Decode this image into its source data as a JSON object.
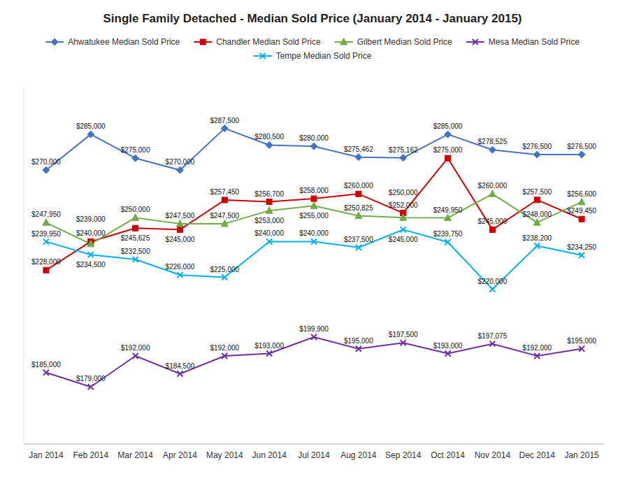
{
  "chart_data": {
    "type": "line",
    "title": "Single Family Detached - Median Sold Price (January 2014 - January 2015)",
    "categories": [
      "Jan 2014",
      "Feb 2014",
      "Mar 2014",
      "Apr 2014",
      "May 2014",
      "Jun 2014",
      "Jul 2014",
      "Aug 2014",
      "Sep 2014",
      "Oct 2014",
      "Nov 2014",
      "Dec 2014",
      "Jan 2015"
    ],
    "series": [
      {
        "name": "Ahwatukee Median Sold Price",
        "color": "#4472C4",
        "marker": "diamond",
        "values": [
          270000,
          285000,
          275000,
          270000,
          287500,
          280500,
          280000,
          275462,
          275162,
          285000,
          278525,
          276500,
          276500
        ],
        "value_labels": [
          "$270,000",
          "$285,000",
          "$275,000",
          "$270,000",
          "$287,500",
          "$280,500",
          "$280,000",
          "$275,462",
          "$275,162",
          "$285,000",
          "$278,525",
          "$276,500",
          "$276,500"
        ]
      },
      {
        "name": "Chandler Median Sold Price",
        "color": "#CC0000",
        "marker": "square",
        "values": [
          228000,
          240000,
          245625,
          245000,
          257450,
          256700,
          258000,
          260000,
          252000,
          275000,
          245000,
          257500,
          249450
        ],
        "value_labels": [
          "$228,000",
          "$240,000",
          "$245,625",
          "$245,000",
          "$257,450",
          "$256,700",
          "$258,000",
          "$260,000",
          "$252,000",
          "$275,000",
          "$245,000",
          "$257,500",
          "$249,450"
        ]
      },
      {
        "name": "Gilbert Median Sold Price",
        "color": "#70AD47",
        "marker": "triangle",
        "values": [
          247950,
          239000,
          250000,
          247500,
          247500,
          253000,
          255000,
          250825,
          250000,
          249950,
          260000,
          248000,
          256600
        ],
        "value_labels": [
          "$247,950",
          "$239,000",
          "$250,000",
          "$247,500",
          "$247,500",
          "$253,000",
          "$255,000",
          "$250,825",
          "$250,000",
          "$249,950",
          "$260,000",
          "$248,000",
          "$256,600"
        ]
      },
      {
        "name": "Mesa Median Sold Price",
        "color": "#7030A0",
        "marker": "x",
        "values": [
          185000,
          179000,
          192000,
          184500,
          192000,
          193000,
          199900,
          195000,
          197500,
          193000,
          197075,
          192000,
          195000
        ],
        "value_labels": [
          "$185,000",
          "$179,000",
          "$192,000",
          "$184,500",
          "$192,000",
          "$193,000",
          "$199,900",
          "$195,000",
          "$197,500",
          "$193,000",
          "$197,075",
          "$192,000",
          "$195,000"
        ]
      },
      {
        "name": "Tempe Median Sold Price",
        "color": "#00B0F0",
        "marker": "x",
        "values": [
          239950,
          234500,
          232500,
          226000,
          225000,
          240000,
          240000,
          237500,
          245000,
          239750,
          220000,
          238200,
          234250
        ],
        "value_labels": [
          "$239,950",
          "$234,500",
          "$232,500",
          "$226,000",
          "$225,000",
          "$240,000",
          "$240,000",
          "$237,500",
          "$245,000",
          "$239,750",
          "$220,000",
          "$238,200",
          "$234,250"
        ]
      }
    ],
    "ylim": [
      155000,
      305000
    ],
    "grid": false,
    "legend": "top",
    "data_labels": true,
    "tick_labels": "x"
  }
}
